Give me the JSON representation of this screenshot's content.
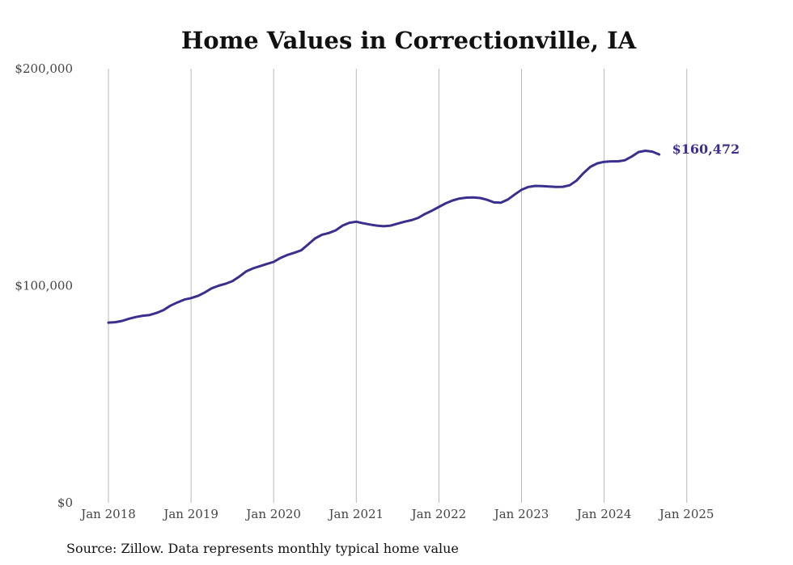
{
  "chart_data": {
    "type": "line",
    "title": "Home Values in Correctionville, IA",
    "xlabel": "",
    "ylabel": "",
    "source": "Source: Zillow. Data represents monthly typical home value",
    "ylim": [
      0,
      200000
    ],
    "y_ticks": [
      "$0",
      "$100,000",
      "$200,000"
    ],
    "y_tick_values": [
      0,
      100000,
      200000
    ],
    "x_ticks": [
      "Jan 2018",
      "Jan 2019",
      "Jan 2020",
      "Jan 2021",
      "Jan 2022",
      "Jan 2023",
      "Jan 2024",
      "Jan 2025"
    ],
    "grid": "vertical",
    "line_color": "#3b2f8e",
    "end_label": "$160,472",
    "start_date": "2018-01",
    "values": [
      83000,
      83200,
      83800,
      84800,
      85600,
      86200,
      86500,
      87500,
      88800,
      90800,
      92300,
      93600,
      94300,
      95300,
      96900,
      98800,
      100000,
      100900,
      102100,
      104200,
      106600,
      108000,
      109000,
      110000,
      111000,
      112800,
      114200,
      115200,
      116300,
      119000,
      121800,
      123500,
      124300,
      125500,
      127700,
      129000,
      129500,
      128800,
      128200,
      127700,
      127400,
      127700,
      128600,
      129500,
      130200,
      131300,
      133100,
      134600,
      136300,
      138000,
      139300,
      140200,
      140600,
      140700,
      140400,
      139600,
      138400,
      138300,
      139700,
      142000,
      144200,
      145500,
      146000,
      145900,
      145700,
      145500,
      145600,
      146300,
      148500,
      151900,
      154800,
      156400,
      157100,
      157300,
      157300,
      157800,
      159500,
      161600,
      162200,
      161800,
      160472
    ]
  }
}
